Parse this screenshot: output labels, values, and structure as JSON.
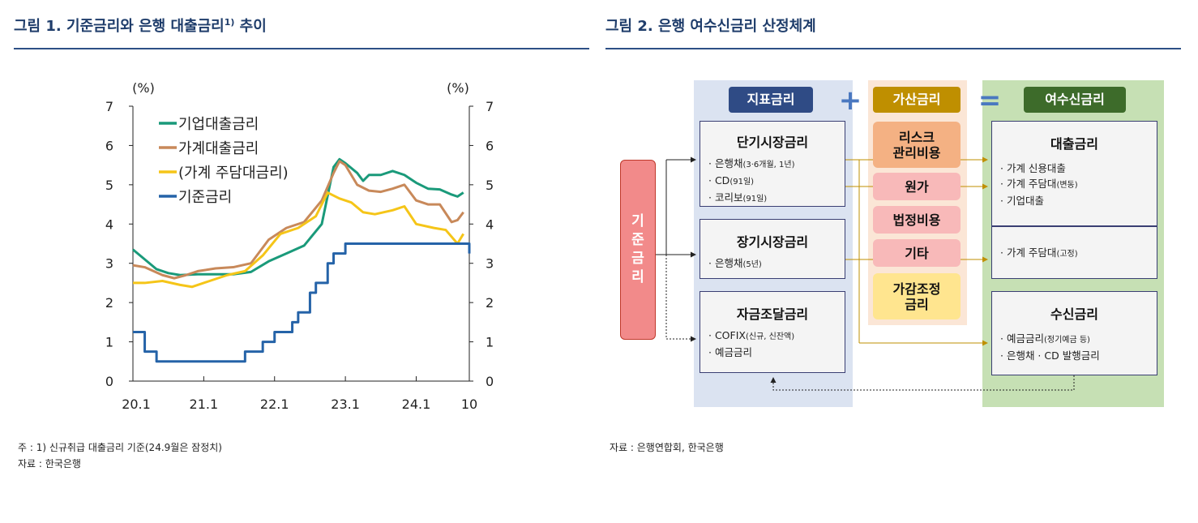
{
  "left": {
    "title": "그림 1. 기준금리와 은행 대출금리",
    "title_sup": "1)",
    "title_tail": " 추이",
    "note1": "주 : 1) 신규취급 대출금리 기준(24.9월은 잠정치)",
    "note2": "자료 : 한국은행"
  },
  "right": {
    "title": "그림 2. 은행 여수신금리 산정체계",
    "note1": "자료 : 은행연합회, 한국은행",
    "base_rate_label": "기준금리",
    "index_header": "지표금리",
    "plus_sign": "+",
    "add_header": "가산금리",
    "equals_sign": "=",
    "result_header": "여수신금리",
    "short_title": "단기시장금리",
    "short_items": [
      "은행채",
      "CD",
      "코리보"
    ],
    "short_items_small": [
      "(3·6개월, 1년)",
      "(91일)",
      "(91일)"
    ],
    "long_title": "장기시장금리",
    "long_items": [
      "은행채"
    ],
    "long_items_small": [
      "(5년)"
    ],
    "fund_title": "자금조달금리",
    "fund_items": [
      "COFIX",
      "예금금리"
    ],
    "fund_items_small": [
      "(신규, 신잔액)",
      ""
    ],
    "add_items": [
      "리스크\n관리비용",
      "원가",
      "법정비용",
      "기타",
      "가감조정\n금리"
    ],
    "loan_title": "대출금리",
    "loan_items": [
      "가계 신용대출",
      "가계 주담대",
      "기업대출"
    ],
    "loan_items_small": [
      "",
      "(변동)",
      ""
    ],
    "fixed_items": [
      "가계 주담대"
    ],
    "fixed_items_small": [
      "(고정)"
    ],
    "deposit_title": "수신금리",
    "deposit_items": [
      "예금금리",
      "은행채   · CD 발행금리"
    ],
    "deposit_items_small": [
      "(정기예금 등)",
      ""
    ]
  },
  "colors": {
    "corporate": "#1a9a7a",
    "household": "#c8895a",
    "mortgage": "#f5c518",
    "base": "#2563a8",
    "title": "#1f3d6b"
  },
  "chart_data": {
    "type": "line",
    "ylabel_left": "(%)",
    "ylabel_right": "(%)",
    "ylim": [
      0,
      7
    ],
    "yticks": [
      0,
      1,
      2,
      3,
      4,
      5,
      6,
      7
    ],
    "x_range": [
      "2020-01",
      "2024-10"
    ],
    "xtick_labels": [
      "20.1",
      "21.1",
      "22.1",
      "23.1",
      "24.1",
      "10"
    ],
    "legend_position": "top-left",
    "series": [
      {
        "name": "기업대출금리",
        "color": "#1a9a7a",
        "points": [
          [
            "2020-01",
            3.35
          ],
          [
            "2020-03",
            3.1
          ],
          [
            "2020-05",
            2.85
          ],
          [
            "2020-07",
            2.75
          ],
          [
            "2020-09",
            2.7
          ],
          [
            "2020-12",
            2.72
          ],
          [
            "2021-03",
            2.72
          ],
          [
            "2021-06",
            2.72
          ],
          [
            "2021-09",
            2.78
          ],
          [
            "2021-12",
            3.05
          ],
          [
            "2022-03",
            3.25
          ],
          [
            "2022-06",
            3.45
          ],
          [
            "2022-09",
            4.0
          ],
          [
            "2022-11",
            5.45
          ],
          [
            "2022-12",
            5.65
          ],
          [
            "2023-01",
            5.55
          ],
          [
            "2023-03",
            5.3
          ],
          [
            "2023-04",
            5.1
          ],
          [
            "2023-05",
            5.25
          ],
          [
            "2023-07",
            5.25
          ],
          [
            "2023-09",
            5.35
          ],
          [
            "2023-11",
            5.25
          ],
          [
            "2024-01",
            5.05
          ],
          [
            "2024-03",
            4.9
          ],
          [
            "2024-05",
            4.88
          ],
          [
            "2024-07",
            4.75
          ],
          [
            "2024-08",
            4.7
          ],
          [
            "2024-09",
            4.8
          ]
        ]
      },
      {
        "name": "가계대출금리",
        "color": "#c8895a",
        "points": [
          [
            "2020-01",
            2.95
          ],
          [
            "2020-03",
            2.9
          ],
          [
            "2020-06",
            2.7
          ],
          [
            "2020-08",
            2.62
          ],
          [
            "2020-10",
            2.7
          ],
          [
            "2020-12",
            2.8
          ],
          [
            "2021-03",
            2.87
          ],
          [
            "2021-06",
            2.9
          ],
          [
            "2021-09",
            3.0
          ],
          [
            "2021-12",
            3.6
          ],
          [
            "2022-03",
            3.9
          ],
          [
            "2022-06",
            4.05
          ],
          [
            "2022-09",
            4.6
          ],
          [
            "2022-11",
            5.3
          ],
          [
            "2022-12",
            5.6
          ],
          [
            "2023-01",
            5.5
          ],
          [
            "2023-03",
            5.0
          ],
          [
            "2023-05",
            4.85
          ],
          [
            "2023-07",
            4.82
          ],
          [
            "2023-09",
            4.9
          ],
          [
            "2023-11",
            5.0
          ],
          [
            "2024-01",
            4.6
          ],
          [
            "2024-03",
            4.5
          ],
          [
            "2024-05",
            4.5
          ],
          [
            "2024-07",
            4.05
          ],
          [
            "2024-08",
            4.1
          ],
          [
            "2024-09",
            4.3
          ]
        ]
      },
      {
        "name": "(가계 주담대금리)",
        "color": "#f5c518",
        "points": [
          [
            "2020-01",
            2.5
          ],
          [
            "2020-03",
            2.5
          ],
          [
            "2020-06",
            2.55
          ],
          [
            "2020-09",
            2.45
          ],
          [
            "2020-11",
            2.4
          ],
          [
            "2021-02",
            2.55
          ],
          [
            "2021-05",
            2.7
          ],
          [
            "2021-08",
            2.8
          ],
          [
            "2021-11",
            3.2
          ],
          [
            "2022-02",
            3.75
          ],
          [
            "2022-05",
            3.9
          ],
          [
            "2022-08",
            4.2
          ],
          [
            "2022-10",
            4.8
          ],
          [
            "2022-12",
            4.65
          ],
          [
            "2023-02",
            4.55
          ],
          [
            "2023-04",
            4.3
          ],
          [
            "2023-06",
            4.25
          ],
          [
            "2023-09",
            4.35
          ],
          [
            "2023-11",
            4.45
          ],
          [
            "2024-01",
            4.0
          ],
          [
            "2024-04",
            3.9
          ],
          [
            "2024-06",
            3.85
          ],
          [
            "2024-08",
            3.5
          ],
          [
            "2024-09",
            3.75
          ]
        ]
      },
      {
        "name": "기준금리",
        "color": "#2563a8",
        "step": true,
        "points": [
          [
            "2020-01",
            1.25
          ],
          [
            "2020-03",
            0.75
          ],
          [
            "2020-05",
            0.5
          ],
          [
            "2021-08",
            0.75
          ],
          [
            "2021-11",
            1.0
          ],
          [
            "2022-01",
            1.25
          ],
          [
            "2022-04",
            1.5
          ],
          [
            "2022-05",
            1.75
          ],
          [
            "2022-07",
            2.25
          ],
          [
            "2022-08",
            2.5
          ],
          [
            "2022-10",
            3.0
          ],
          [
            "2022-11",
            3.25
          ],
          [
            "2023-01",
            3.5
          ],
          [
            "2024-09",
            3.5
          ],
          [
            "2024-10",
            3.25
          ]
        ]
      }
    ]
  }
}
